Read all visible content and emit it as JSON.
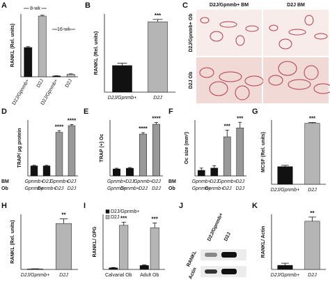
{
  "chart_data": [
    {
      "type": "bar",
      "panel": "A",
      "ylabel": "RANKL (Rel. units)",
      "categories": [
        "D2J/Gpnmb+",
        "D2J",
        "D2J/Gpnmb+",
        "D2J"
      ],
      "group_labels": [
        "8-wk",
        "16-wk"
      ],
      "values": [
        0.07,
        0.145,
        0.002,
        0.006
      ],
      "errors": [
        0.002,
        0.002,
        0.0005,
        0.001
      ],
      "colors": [
        "#111111",
        "#b5b5b5",
        "#111111",
        "#b5b5b5"
      ],
      "ylim": [
        0,
        0.15
      ]
    },
    {
      "type": "bar",
      "panel": "B",
      "ylabel": "RANKL (Rel. units)",
      "categories": [
        "D2J/Gpnmb+",
        "D2J"
      ],
      "values": [
        1700,
        4500
      ],
      "errors": [
        150,
        150
      ],
      "stars": [
        null,
        "***"
      ],
      "colors": [
        "#111111",
        "#b5b5b5"
      ],
      "ylim": [
        0,
        5000
      ]
    },
    {
      "type": "bar",
      "panel": "D",
      "ylabel": "TRAP/ µg protein",
      "categories": [
        "Gpnmb+",
        "D2J",
        "Gpnmb+",
        "D2J"
      ],
      "categories2": [
        "Gpnmb+",
        "Gpnmb+",
        "D2J",
        "D2J"
      ],
      "row_labels": [
        "BM",
        "Ob"
      ],
      "values": [
        0.18,
        0.18,
        0.78,
        0.9
      ],
      "errors": [
        0.01,
        0.01,
        0.03,
        0.02
      ],
      "stars": [
        null,
        null,
        "****",
        "****"
      ],
      "colors": [
        "#111111",
        "#111111",
        "#999999",
        "#999999"
      ],
      "ylim": [
        0,
        1
      ]
    },
    {
      "type": "bar",
      "panel": "E",
      "ylabel": "TRAP (+) Oc",
      "categories": [
        "Gpnmb+",
        "D2J",
        "Gpnmb+",
        "D2J"
      ],
      "categories2": [
        "Gpnmb+",
        "Gpnmb+",
        "D2J",
        "D2J"
      ],
      "values": [
        50,
        55,
        300,
        370
      ],
      "errors": [
        5,
        5,
        10,
        12
      ],
      "stars": [
        null,
        null,
        "****",
        "****"
      ],
      "colors": [
        "#111111",
        "#111111",
        "#999999",
        "#999999"
      ],
      "ylim": [
        0,
        400
      ]
    },
    {
      "type": "bar",
      "panel": "F",
      "ylabel": "Oc size (mm²)",
      "categories": [
        "Gpnmb+",
        "D2J",
        "Gpnmb+",
        "D2J"
      ],
      "categories2": [
        "Gpnmb+",
        "Gpnmb+",
        "D2J",
        "D2J"
      ],
      "row_labels": [
        "BM",
        "Ob"
      ],
      "values": [
        0.005,
        0.007,
        0.035,
        0.043
      ],
      "errors": [
        0.002,
        0.002,
        0.006,
        0.005
      ],
      "stars": [
        null,
        null,
        "***",
        "***"
      ],
      "colors": [
        "#111111",
        "#111111",
        "#999999",
        "#999999"
      ],
      "ylim": [
        0,
        0.05
      ]
    },
    {
      "type": "bar",
      "panel": "G",
      "ylabel": "MCSF (Rel. units)",
      "categories": [
        "D2J/Gpnmb+",
        "D2J"
      ],
      "values": [
        1.1,
        3.8
      ],
      "errors": [
        0.08,
        0.05
      ],
      "stars": [
        null,
        "***"
      ],
      "colors": [
        "#111111",
        "#b5b5b5"
      ],
      "ylim": [
        0,
        4
      ]
    },
    {
      "type": "bar",
      "panel": "H",
      "ylabel": "RANKL (Rel. units)",
      "categories": [
        "D2J/Gpnmb+",
        "D2J"
      ],
      "values": [
        0.5,
        50
      ],
      "errors": [
        0.2,
        5
      ],
      "stars": [
        null,
        "**"
      ],
      "colors": [
        "#111111",
        "#b5b5b5"
      ],
      "ylim": [
        0,
        60
      ]
    },
    {
      "type": "grouped_bar",
      "panel": "I",
      "ylabel": "RANKL/ OPG",
      "categories": [
        "Calvarial Ob",
        "Adult Ob"
      ],
      "series": [
        {
          "name": "D2J/Gpnmb+",
          "color": "#111111",
          "values": [
            20,
            50
          ],
          "errors": [
            5,
            8
          ]
        },
        {
          "name": "D2J",
          "color": "#b5b5b5",
          "values": [
            560,
            530
          ],
          "errors": [
            40,
            60
          ],
          "stars": [
            "***",
            "***"
          ]
        }
      ],
      "ylim": [
        0,
        700
      ]
    },
    {
      "type": "bar",
      "panel": "K",
      "ylabel": "RANKL/ Actin",
      "categories": [
        "D2J/Gpnmb+",
        "D2J"
      ],
      "values": [
        3,
        35
      ],
      "errors": [
        1.5,
        3
      ],
      "stars": [
        null,
        "**"
      ],
      "colors": [
        "#111111",
        "#b5b5b5"
      ],
      "ylim": [
        0,
        40
      ]
    }
  ],
  "micrographs": {
    "panel": "C",
    "column_labels": [
      "D2J/Gpnmb+ BM",
      "D2J BM"
    ],
    "row_labels": [
      "D2J/Gpnmb+ Ob",
      "D2J Ob"
    ]
  },
  "blot": {
    "panel": "J",
    "lane_labels": [
      "D2J/Gpnmb+",
      "D2J"
    ],
    "band_labels": [
      "RANKL",
      "Actin"
    ]
  }
}
